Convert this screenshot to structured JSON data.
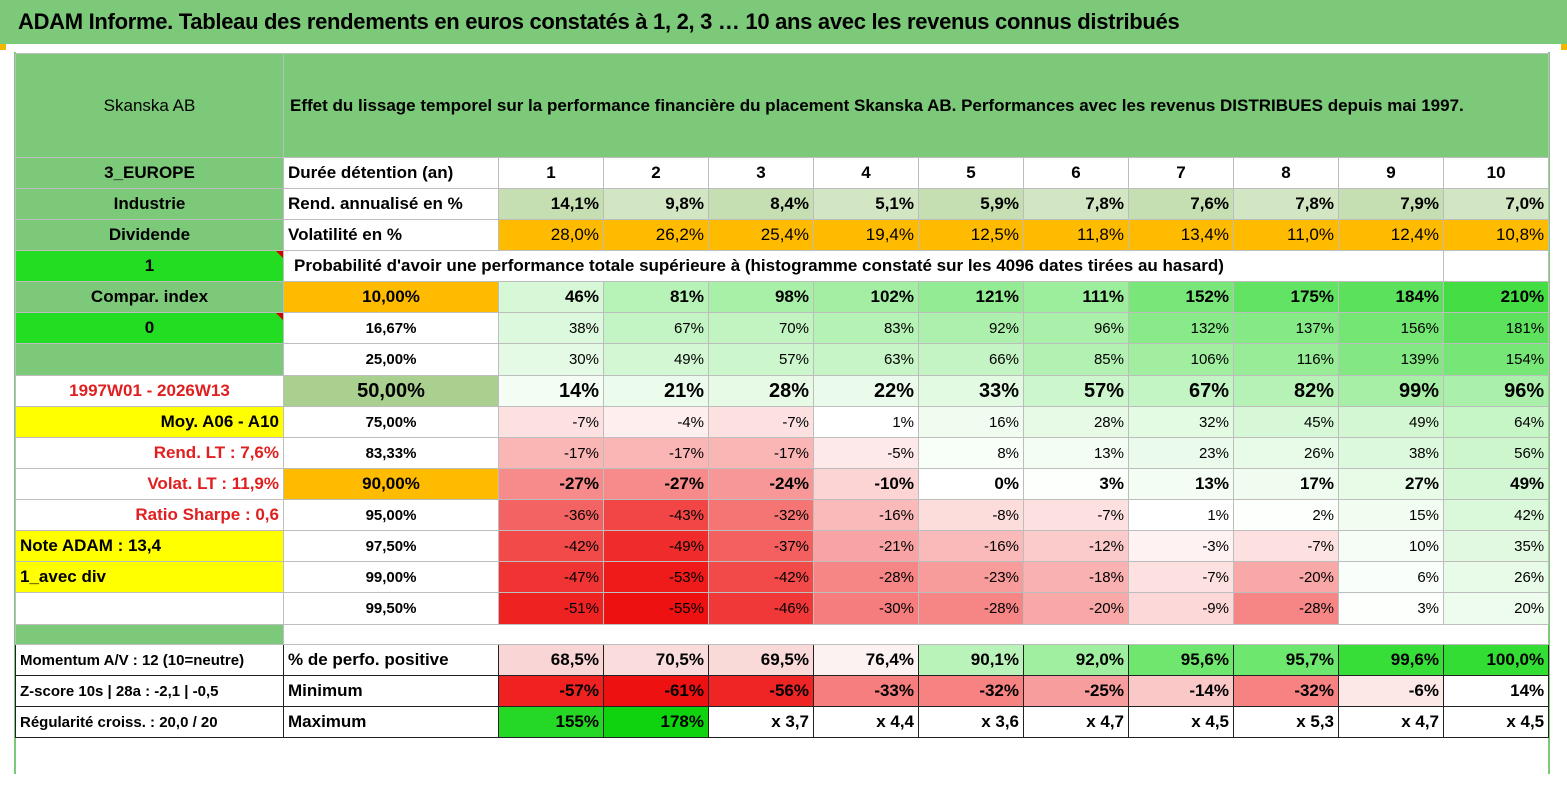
{
  "title": "ADAM Informe. Tableau des rendements en euros constatés à 1, 2, 3 … 10 ans avec les revenus connus distribués",
  "header": {
    "asset": "Skanska AB",
    "description": "Effet du lissage temporel sur la performance financière du placement Skanska AB. Performances avec les revenus DISTRIBUES depuis mai 1997."
  },
  "rows": [
    {
      "left": "3_EUROPE",
      "label": "Durée détention (an)",
      "cells": [
        "1",
        "2",
        "3",
        "4",
        "5",
        "6",
        "7",
        "8",
        "9",
        "10"
      ]
    },
    {
      "left": "Industrie",
      "label": "Rend. annualisé en %",
      "cells": [
        "14,1%",
        "9,8%",
        "8,4%",
        "5,1%",
        "5,9%",
        "7,8%",
        "7,6%",
        "7,8%",
        "7,9%",
        "7,0%"
      ]
    },
    {
      "left": "Dividende",
      "label": "Volatilité en %",
      "cells": [
        "28,0%",
        "26,2%",
        "25,4%",
        "19,4%",
        "12,5%",
        "11,8%",
        "13,4%",
        "11,0%",
        "12,4%",
        "10,8%"
      ]
    },
    {
      "left": "1",
      "label": "Probabilité d'avoir une performance totale supérieure à (histogramme constaté sur les 4096 dates tirées au hasard)",
      "cells": []
    },
    {
      "left": "Compar. index",
      "label": "10,00%",
      "cells": [
        "46%",
        "81%",
        "98%",
        "102%",
        "121%",
        "111%",
        "152%",
        "175%",
        "184%",
        "210%"
      ]
    },
    {
      "left": "0",
      "label": "16,67%",
      "cells": [
        "38%",
        "67%",
        "70%",
        "83%",
        "92%",
        "96%",
        "132%",
        "137%",
        "156%",
        "181%"
      ]
    },
    {
      "left": "",
      "label": "25,00%",
      "cells": [
        "30%",
        "49%",
        "57%",
        "63%",
        "66%",
        "85%",
        "106%",
        "116%",
        "139%",
        "154%"
      ]
    },
    {
      "left": "1997W01 - 2026W13",
      "label": "50,00%",
      "cells": [
        "14%",
        "21%",
        "28%",
        "22%",
        "33%",
        "57%",
        "67%",
        "82%",
        "99%",
        "96%"
      ]
    },
    {
      "left": "Moy. A06 - A10",
      "label": "75,00%",
      "cells": [
        "-7%",
        "-4%",
        "-7%",
        "1%",
        "16%",
        "28%",
        "32%",
        "45%",
        "49%",
        "64%"
      ]
    },
    {
      "left": "Rend. LT :   7,6%",
      "label": "83,33%",
      "cells": [
        "-17%",
        "-17%",
        "-17%",
        "-5%",
        "8%",
        "13%",
        "23%",
        "26%",
        "38%",
        "56%"
      ]
    },
    {
      "left": "Volat. LT :   11,9%",
      "label": "90,00%",
      "cells": [
        "-27%",
        "-27%",
        "-24%",
        "-10%",
        "0%",
        "3%",
        "13%",
        "17%",
        "27%",
        "49%"
      ]
    },
    {
      "left": "Ratio Sharpe :    0,6",
      "label": "95,00%",
      "cells": [
        "-36%",
        "-43%",
        "-32%",
        "-16%",
        "-8%",
        "-7%",
        "1%",
        "2%",
        "15%",
        "42%"
      ]
    },
    {
      "left": "Note ADAM : 13,4",
      "label": "97,50%",
      "cells": [
        "-42%",
        "-49%",
        "-37%",
        "-21%",
        "-16%",
        "-12%",
        "-3%",
        "-7%",
        "10%",
        "35%"
      ]
    },
    {
      "left": "1_avec div",
      "label": "99,00%",
      "cells": [
        "-47%",
        "-53%",
        "-42%",
        "-28%",
        "-23%",
        "-18%",
        "-7%",
        "-20%",
        "6%",
        "26%"
      ]
    },
    {
      "left": "",
      "label": "99,50%",
      "cells": [
        "-51%",
        "-55%",
        "-46%",
        "-30%",
        "-28%",
        "-20%",
        "-9%",
        "-28%",
        "3%",
        "20%"
      ]
    },
    {
      "left": "",
      "label": "",
      "cells": []
    },
    {
      "left": "Momentum A/V : 12 (10=neutre)",
      "label": "% de perfo. positive",
      "cells": [
        "68,5%",
        "70,5%",
        "69,5%",
        "76,4%",
        "90,1%",
        "92,0%",
        "95,6%",
        "95,7%",
        "99,6%",
        "100,0%"
      ]
    },
    {
      "left": "Z-score 10s | 28a : -2,1 | -0,5",
      "label": "Minimum",
      "cells": [
        "-57%",
        "-61%",
        "-56%",
        "-33%",
        "-32%",
        "-25%",
        "-14%",
        "-32%",
        "-6%",
        "14%"
      ]
    },
    {
      "left": "Régularité croiss. : 20,0 / 20",
      "label": "Maximum",
      "cells": [
        "155%",
        "178%",
        "x 3,7",
        "x 4,4",
        "x 3,6",
        "x 4,7",
        "x 4,5",
        "x 5,3",
        "x 4,7",
        "x 4,5"
      ]
    }
  ],
  "colors": {
    "header_green": "#7dc97a",
    "light_green": "#c6dfb2",
    "bright_green": "#22dd22",
    "orange": "#ffbb00",
    "yellow": "#ffff00",
    "red_text": "#e02020",
    "cell_green_max": "#44dd44",
    "cell_red_max": "#ee1111"
  }
}
